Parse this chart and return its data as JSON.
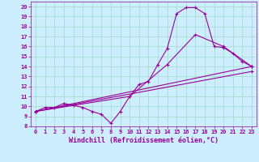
{
  "xlabel": "Windchill (Refroidissement éolien,°C)",
  "background_color": "#cceeff",
  "grid_color": "#aaddcc",
  "line_color": "#990099",
  "xlim": [
    -0.5,
    23.5
  ],
  "ylim": [
    8,
    20.5
  ],
  "xticks": [
    0,
    1,
    2,
    3,
    4,
    5,
    6,
    7,
    8,
    9,
    10,
    11,
    12,
    13,
    14,
    15,
    16,
    17,
    18,
    19,
    20,
    21,
    22,
    23
  ],
  "yticks": [
    8,
    9,
    10,
    11,
    12,
    13,
    14,
    15,
    16,
    17,
    18,
    19,
    20
  ],
  "line1_x": [
    0,
    1,
    2,
    3,
    4,
    5,
    6,
    7,
    8,
    9,
    10,
    11,
    12,
    13,
    14,
    15,
    16,
    17,
    18,
    19,
    20,
    21,
    22,
    23
  ],
  "line1_y": [
    9.5,
    9.9,
    9.9,
    10.3,
    10.1,
    9.9,
    9.5,
    9.2,
    8.3,
    9.5,
    11.0,
    12.2,
    12.5,
    14.2,
    15.8,
    19.3,
    19.9,
    19.9,
    19.3,
    16.0,
    15.9,
    15.3,
    14.5,
    14.0
  ],
  "line2_x": [
    0,
    23
  ],
  "line2_y": [
    9.5,
    14.0
  ],
  "line3_x": [
    0,
    10,
    14,
    17,
    20,
    23
  ],
  "line3_y": [
    9.5,
    11.0,
    14.2,
    17.2,
    16.0,
    14.0
  ],
  "line4_x": [
    0,
    23
  ],
  "line4_y": [
    9.5,
    13.5
  ],
  "tick_fontsize": 5.0,
  "xlabel_fontsize": 6.0
}
